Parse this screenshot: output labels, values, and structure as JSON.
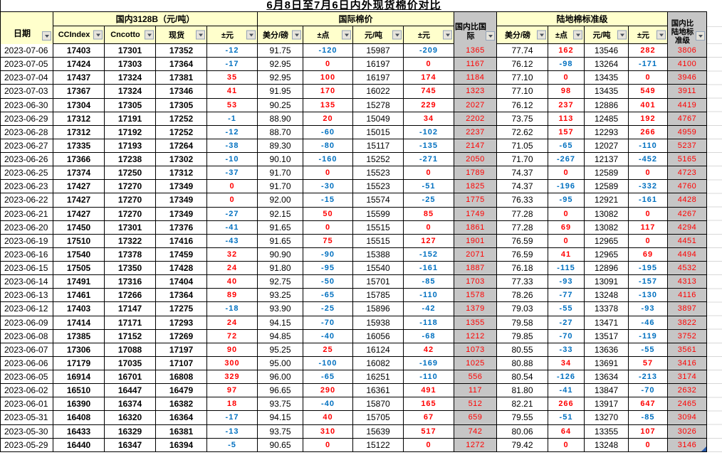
{
  "title": "6月8日至7月6日内外现货棉价对比",
  "colors": {
    "header_yellow": "#ffffcc",
    "gray_column": "#c6c6c6",
    "positive_red": "#ff0000",
    "negative_blue": "#0070c0",
    "grid_line": "#000000",
    "selection_corner_blue": "#2a5caa"
  },
  "icons": {
    "filter_dropdown": "autofilter down-arrow button on every column header"
  },
  "table": {
    "groups": [
      {
        "label": "国内3128B（元/吨）"
      },
      {
        "label": "国际棉价"
      },
      {
        "label": "陆地棉标准级"
      }
    ],
    "columns": [
      {
        "id": "date",
        "label": "日期",
        "type": "date",
        "filter": true
      },
      {
        "id": "ccindex",
        "label": "CCIndex",
        "type": "bold",
        "filter": true
      },
      {
        "id": "cncotton",
        "label": "Cncotto",
        "type": "bold",
        "filter": true
      },
      {
        "id": "spot",
        "label": "现货",
        "type": "bold",
        "filter": true
      },
      {
        "id": "domestic-change",
        "label": "±元",
        "type": "signed",
        "filter": true
      },
      {
        "id": "intl-cents",
        "label": "美分/磅",
        "type": "plain",
        "filter": true
      },
      {
        "id": "intl-points",
        "label": "±点",
        "type": "signed",
        "filter": true
      },
      {
        "id": "intl-rmb",
        "label": "元/吨",
        "type": "plain",
        "filter": true
      },
      {
        "id": "intl-change",
        "label": "±元",
        "type": "signed",
        "filter": true
      },
      {
        "id": "domestic-vs-intl",
        "label": "国内比国际",
        "type": "gray",
        "filter": true
      },
      {
        "id": "upland-cents",
        "label": "美分/磅",
        "type": "plain",
        "filter": true
      },
      {
        "id": "upland-points",
        "label": "±点",
        "type": "signed",
        "filter": true
      },
      {
        "id": "upland-rmb",
        "label": "元/吨",
        "type": "plain",
        "filter": true
      },
      {
        "id": "upland-change",
        "label": "±元",
        "type": "signed",
        "filter": true
      },
      {
        "id": "domestic-vs-upland",
        "label": "国内比陆地标准级",
        "type": "gray",
        "filter": true
      }
    ],
    "rows": [
      [
        "2023-07-06",
        "17403",
        "17301",
        "17352",
        "-12",
        "91.75",
        "-120",
        "15987",
        "-209",
        "1365",
        "77.74",
        "162",
        "13546",
        "282",
        "3806"
      ],
      [
        "2023-07-05",
        "17424",
        "17303",
        "17364",
        "-17",
        "92.95",
        "0",
        "16197",
        "0",
        "1167",
        "76.12",
        "-98",
        "13264",
        "-171",
        "4100"
      ],
      [
        "2023-07-04",
        "17437",
        "17324",
        "17381",
        "35",
        "92.95",
        "100",
        "16197",
        "174",
        "1184",
        "77.10",
        "0",
        "13435",
        "0",
        "3946"
      ],
      [
        "2023-07-03",
        "17367",
        "17324",
        "17346",
        "41",
        "91.95",
        "170",
        "16022",
        "745",
        "1323",
        "77.10",
        "98",
        "13435",
        "549",
        "3911"
      ],
      [
        "2023-06-30",
        "17304",
        "17305",
        "17305",
        "53",
        "90.25",
        "135",
        "15278",
        "229",
        "2027",
        "76.12",
        "237",
        "12886",
        "401",
        "4419"
      ],
      [
        "2023-06-29",
        "17312",
        "17191",
        "17252",
        "-1",
        "88.90",
        "20",
        "15049",
        "34",
        "2202",
        "73.75",
        "113",
        "12485",
        "192",
        "4767"
      ],
      [
        "2023-06-28",
        "17312",
        "17192",
        "17252",
        "-12",
        "88.70",
        "-60",
        "15015",
        "-102",
        "2237",
        "72.62",
        "157",
        "12293",
        "266",
        "4959"
      ],
      [
        "2023-06-27",
        "17335",
        "17193",
        "17264",
        "-38",
        "89.30",
        "-80",
        "15117",
        "-135",
        "2147",
        "71.05",
        "-65",
        "12027",
        "-110",
        "5237"
      ],
      [
        "2023-06-26",
        "17366",
        "17238",
        "17302",
        "-10",
        "90.10",
        "-160",
        "15252",
        "-271",
        "2050",
        "71.70",
        "-267",
        "12137",
        "-452",
        "5165"
      ],
      [
        "2023-06-25",
        "17374",
        "17250",
        "17312",
        "-37",
        "91.70",
        "0",
        "15523",
        "0",
        "1789",
        "74.37",
        "0",
        "12589",
        "0",
        "4723"
      ],
      [
        "2023-06-23",
        "17427",
        "17270",
        "17349",
        "0",
        "91.70",
        "-30",
        "15523",
        "-51",
        "1825",
        "74.37",
        "-196",
        "12589",
        "-332",
        "4760"
      ],
      [
        "2023-06-22",
        "17427",
        "17270",
        "17349",
        "0",
        "92.00",
        "-15",
        "15574",
        "-25",
        "1775",
        "76.33",
        "-95",
        "12921",
        "-161",
        "4428"
      ],
      [
        "2023-06-21",
        "17427",
        "17270",
        "17349",
        "-27",
        "92.15",
        "50",
        "15599",
        "85",
        "1749",
        "77.28",
        "0",
        "13082",
        "0",
        "4267"
      ],
      [
        "2023-06-20",
        "17450",
        "17301",
        "17376",
        "-41",
        "91.65",
        "0",
        "15515",
        "0",
        "1861",
        "77.28",
        "69",
        "13082",
        "117",
        "4294"
      ],
      [
        "2023-06-19",
        "17510",
        "17322",
        "17416",
        "-43",
        "91.65",
        "75",
        "15515",
        "127",
        "1901",
        "76.59",
        "0",
        "12965",
        "0",
        "4451"
      ],
      [
        "2023-06-16",
        "17540",
        "17378",
        "17459",
        "32",
        "90.90",
        "-90",
        "15388",
        "-152",
        "2071",
        "76.59",
        "41",
        "12965",
        "69",
        "4494"
      ],
      [
        "2023-06-15",
        "17505",
        "17350",
        "17428",
        "24",
        "91.80",
        "-95",
        "15540",
        "-161",
        "1887",
        "76.18",
        "-115",
        "12896",
        "-195",
        "4532"
      ],
      [
        "2023-06-14",
        "17491",
        "17316",
        "17404",
        "40",
        "92.75",
        "-50",
        "15701",
        "-85",
        "1703",
        "77.33",
        "-93",
        "13091",
        "-157",
        "4313"
      ],
      [
        "2023-06-13",
        "17461",
        "17266",
        "17364",
        "89",
        "93.25",
        "-65",
        "15785",
        "-110",
        "1578",
        "78.26",
        "-77",
        "13248",
        "-130",
        "4116"
      ],
      [
        "2023-06-12",
        "17403",
        "17147",
        "17275",
        "-18",
        "93.90",
        "-25",
        "15896",
        "-42",
        "1379",
        "79.03",
        "-55",
        "13378",
        "-93",
        "3897"
      ],
      [
        "2023-06-09",
        "17414",
        "17171",
        "17293",
        "24",
        "94.15",
        "-70",
        "15938",
        "-118",
        "1355",
        "79.58",
        "-27",
        "13471",
        "-46",
        "3822"
      ],
      [
        "2023-06-08",
        "17385",
        "17152",
        "17269",
        "72",
        "94.85",
        "-40",
        "16056",
        "-68",
        "1212",
        "79.85",
        "-70",
        "13517",
        "-119",
        "3752"
      ],
      [
        "2023-06-07",
        "17306",
        "17088",
        "17197",
        "90",
        "95.25",
        "25",
        "16124",
        "42",
        "1073",
        "80.55",
        "-33",
        "13636",
        "-55",
        "3561"
      ],
      [
        "2023-06-06",
        "17179",
        "17035",
        "17107",
        "300",
        "95.00",
        "-100",
        "16082",
        "-169",
        "1025",
        "80.88",
        "34",
        "13691",
        "57",
        "3416"
      ],
      [
        "2023-06-05",
        "16914",
        "16701",
        "16808",
        "329",
        "96.00",
        "-65",
        "16251",
        "-110",
        "556",
        "80.54",
        "-126",
        "13634",
        "-213",
        "3174"
      ],
      [
        "2023-06-02",
        "16510",
        "16447",
        "16479",
        "97",
        "96.65",
        "290",
        "16361",
        "491",
        "117",
        "81.80",
        "-41",
        "13847",
        "-70",
        "2632"
      ],
      [
        "2023-06-01",
        "16390",
        "16374",
        "16382",
        "18",
        "93.75",
        "-40",
        "15870",
        "165",
        "512",
        "82.21",
        "266",
        "13917",
        "647",
        "2465"
      ],
      [
        "2023-05-31",
        "16408",
        "16320",
        "16364",
        "-17",
        "94.15",
        "40",
        "15705",
        "67",
        "659",
        "79.55",
        "-51",
        "13270",
        "-85",
        "3094"
      ],
      [
        "2023-05-30",
        "16433",
        "16329",
        "16381",
        "-13",
        "93.75",
        "310",
        "15639",
        "517",
        "742",
        "80.06",
        "64",
        "13355",
        "107",
        "3026"
      ],
      [
        "2023-05-29",
        "16440",
        "16347",
        "16394",
        "-5",
        "90.65",
        "0",
        "15122",
        "0",
        "1272",
        "79.42",
        "0",
        "13248",
        "0",
        "3146"
      ]
    ]
  }
}
